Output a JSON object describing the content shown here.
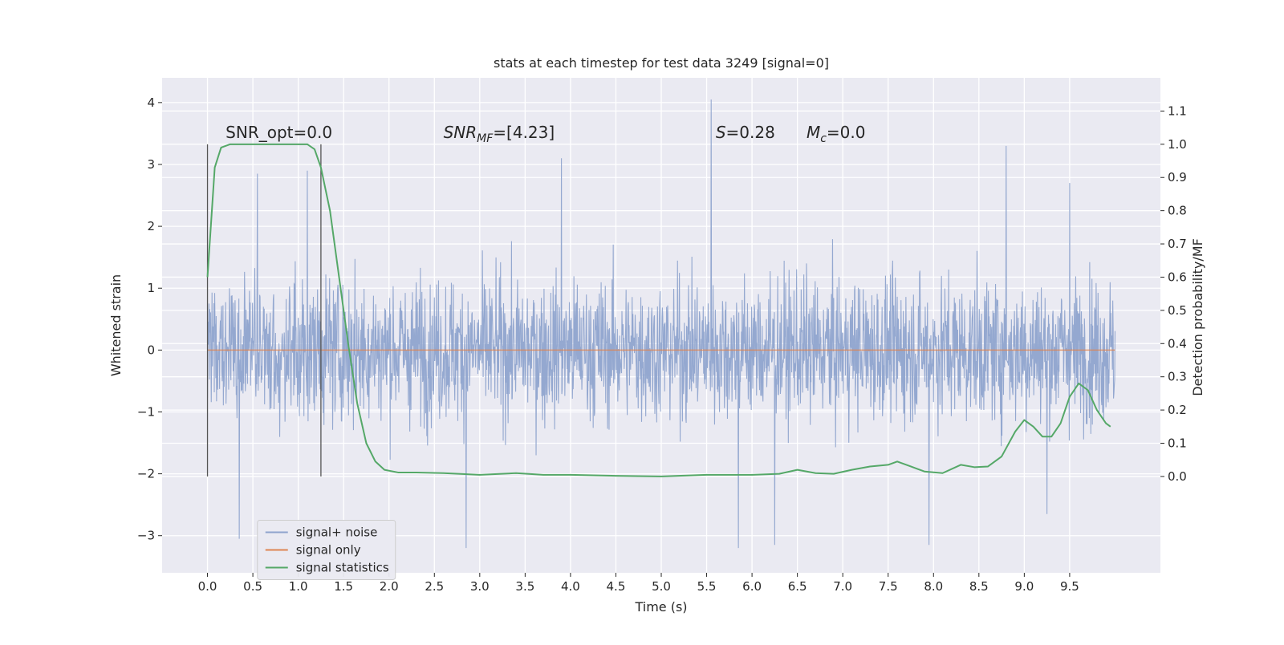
{
  "chart_data": {
    "type": "line",
    "title": "stats at each timestep for test data 3249 [signal=0]",
    "xlabel": "Time (s)",
    "ylabel": "Whitened strain",
    "y2label": "Detection probability/MF",
    "xlim": [
      -0.5,
      10.5
    ],
    "ylim": [
      -3.6,
      4.4
    ],
    "y2lim": [
      -0.29,
      1.2
    ],
    "xticks": [
      0.0,
      0.5,
      1.0,
      1.5,
      2.0,
      2.5,
      3.0,
      3.5,
      4.0,
      4.5,
      5.0,
      5.5,
      6.0,
      6.5,
      7.0,
      7.5,
      8.0,
      8.5,
      9.0,
      9.5
    ],
    "xtick_labels": [
      "0.0",
      "0.5",
      "1.0",
      "1.5",
      "2.0",
      "2.5",
      "3.0",
      "3.5",
      "4.0",
      "4.5",
      "5.0",
      "5.5",
      "6.0",
      "6.5",
      "7.0",
      "7.5",
      "8.0",
      "8.5",
      "9.0",
      "9.5"
    ],
    "yticks": [
      -3,
      -2,
      -1,
      0,
      1,
      2,
      3,
      4
    ],
    "ytick_labels": [
      "−3",
      "−2",
      "−1",
      "0",
      "1",
      "2",
      "3",
      "4"
    ],
    "y2ticks": [
      0.0,
      0.1,
      0.2,
      0.3,
      0.4,
      0.5,
      0.6,
      0.7,
      0.8,
      0.9,
      1.0,
      1.1
    ],
    "y2tick_labels": [
      "0.0",
      "0.1",
      "0.2",
      "0.3",
      "0.4",
      "0.5",
      "0.6",
      "0.7",
      "0.8",
      "0.9",
      "1.0",
      "1.1"
    ],
    "grid": true,
    "legend_position": "lower-left",
    "annotations": {
      "snr_opt": "SNR_opt=0.0",
      "snr_mf_prefix": "SNR",
      "snr_mf_sub": "MF",
      "snr_mf_value": "=[4.23]",
      "s_symbol": "S",
      "s_value": "=0.28",
      "mc_symbol": "M",
      "mc_sub": "c",
      "mc_value": "=0.0"
    },
    "vertical_lines": [
      0.0,
      1.25
    ],
    "series": [
      {
        "name": "signal+ noise",
        "color": "#8fa4cd",
        "axis": "left",
        "x_range": [
          0.0,
          10.0
        ],
        "envelope": {
          "typical_min": -1.6,
          "typical_max": 1.55,
          "peak_max": 4.05,
          "peak_max_x": 5.55,
          "peak_min": -3.2,
          "peak_min_x": 2.85,
          "notable_peaks": [
            {
              "x": 3.9,
              "y": 3.1
            },
            {
              "x": 5.55,
              "y": 4.05
            },
            {
              "x": 8.8,
              "y": 3.3
            },
            {
              "x": 0.55,
              "y": 2.85
            },
            {
              "x": 1.1,
              "y": 2.9
            },
            {
              "x": 9.5,
              "y": 2.7
            }
          ],
          "notable_troughs": [
            {
              "x": 0.35,
              "y": -3.05
            },
            {
              "x": 2.85,
              "y": -3.2
            },
            {
              "x": 5.85,
              "y": -3.2
            },
            {
              "x": 6.25,
              "y": -3.15
            },
            {
              "x": 7.95,
              "y": -3.15
            },
            {
              "x": 9.25,
              "y": -2.65
            }
          ]
        }
      },
      {
        "name": "signal only",
        "color": "#dd8452",
        "axis": "left",
        "x": [
          0.0,
          10.0
        ],
        "y": [
          0.0,
          0.0
        ]
      },
      {
        "name": "signal statistics",
        "color": "#55a868",
        "axis": "right",
        "x": [
          0.0,
          0.08,
          0.15,
          0.25,
          0.4,
          0.6,
          0.8,
          1.0,
          1.1,
          1.18,
          1.25,
          1.35,
          1.45,
          1.55,
          1.65,
          1.75,
          1.85,
          1.95,
          2.1,
          2.3,
          2.6,
          3.0,
          3.4,
          3.7,
          4.0,
          4.5,
          5.0,
          5.5,
          6.0,
          6.3,
          6.5,
          6.7,
          6.9,
          7.1,
          7.3,
          7.5,
          7.6,
          7.75,
          7.9,
          8.1,
          8.3,
          8.45,
          8.6,
          8.75,
          8.9,
          9.0,
          9.1,
          9.2,
          9.3,
          9.4,
          9.5,
          9.6,
          9.7,
          9.8,
          9.9,
          9.95
        ],
        "y": [
          0.6,
          0.93,
          0.99,
          1.0,
          1.0,
          1.0,
          1.0,
          1.0,
          1.0,
          0.985,
          0.93,
          0.8,
          0.6,
          0.4,
          0.22,
          0.1,
          0.045,
          0.02,
          0.012,
          0.012,
          0.01,
          0.005,
          0.01,
          0.005,
          0.005,
          0.002,
          0.0,
          0.005,
          0.005,
          0.008,
          0.02,
          0.01,
          0.008,
          0.02,
          0.03,
          0.035,
          0.045,
          0.03,
          0.015,
          0.01,
          0.035,
          0.028,
          0.03,
          0.06,
          0.135,
          0.17,
          0.15,
          0.12,
          0.12,
          0.16,
          0.24,
          0.28,
          0.26,
          0.2,
          0.16,
          0.15
        ]
      }
    ]
  }
}
